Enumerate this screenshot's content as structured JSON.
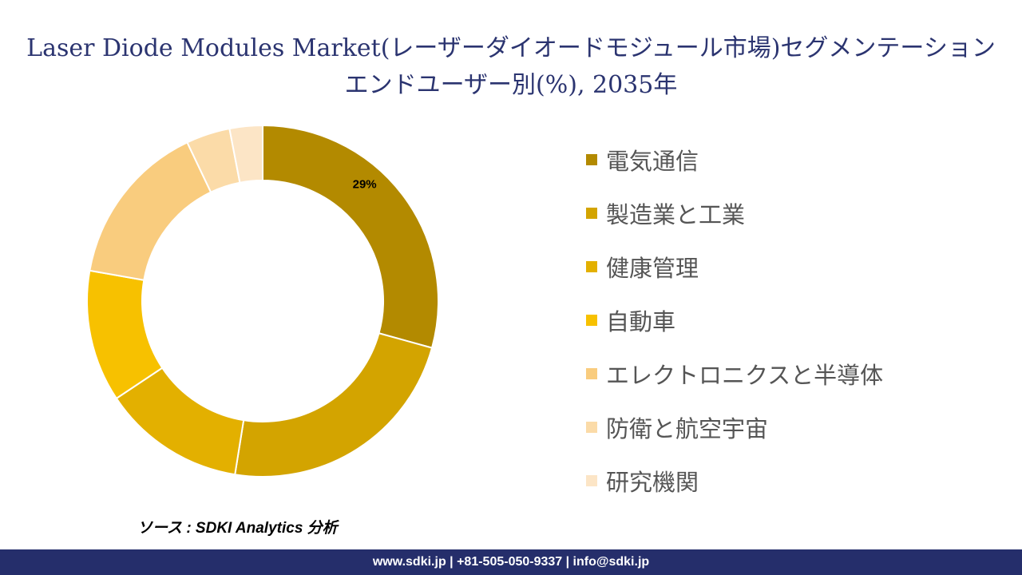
{
  "title": "Laser Diode Modules Market(レーザーダイオードモジュール市場)セグメンテーションエンドユーザー別(%), 2035年",
  "source": "ソース : SDKI Analytics 分析",
  "footer": "www.sdki.jp | +81-505-050-9337 | info@sdki.jp",
  "chart_data": {
    "type": "donut",
    "unit": "%",
    "legend_position": "right",
    "categories": [
      "電気通信",
      "製造業と工業",
      "健康管理",
      "自動車",
      "エレクトロニクスと半導体",
      "防衛と航空宇宙",
      "研究機関"
    ],
    "values": [
      29,
      23,
      13,
      12,
      15,
      4,
      3
    ],
    "colors": [
      "#b38a00",
      "#d3a400",
      "#e3b000",
      "#f7c100",
      "#f9cc7e",
      "#fbdba8",
      "#fce5c6"
    ],
    "data_labels": [
      "29%",
      "",
      "",
      "",
      "",
      "",
      ""
    ]
  }
}
